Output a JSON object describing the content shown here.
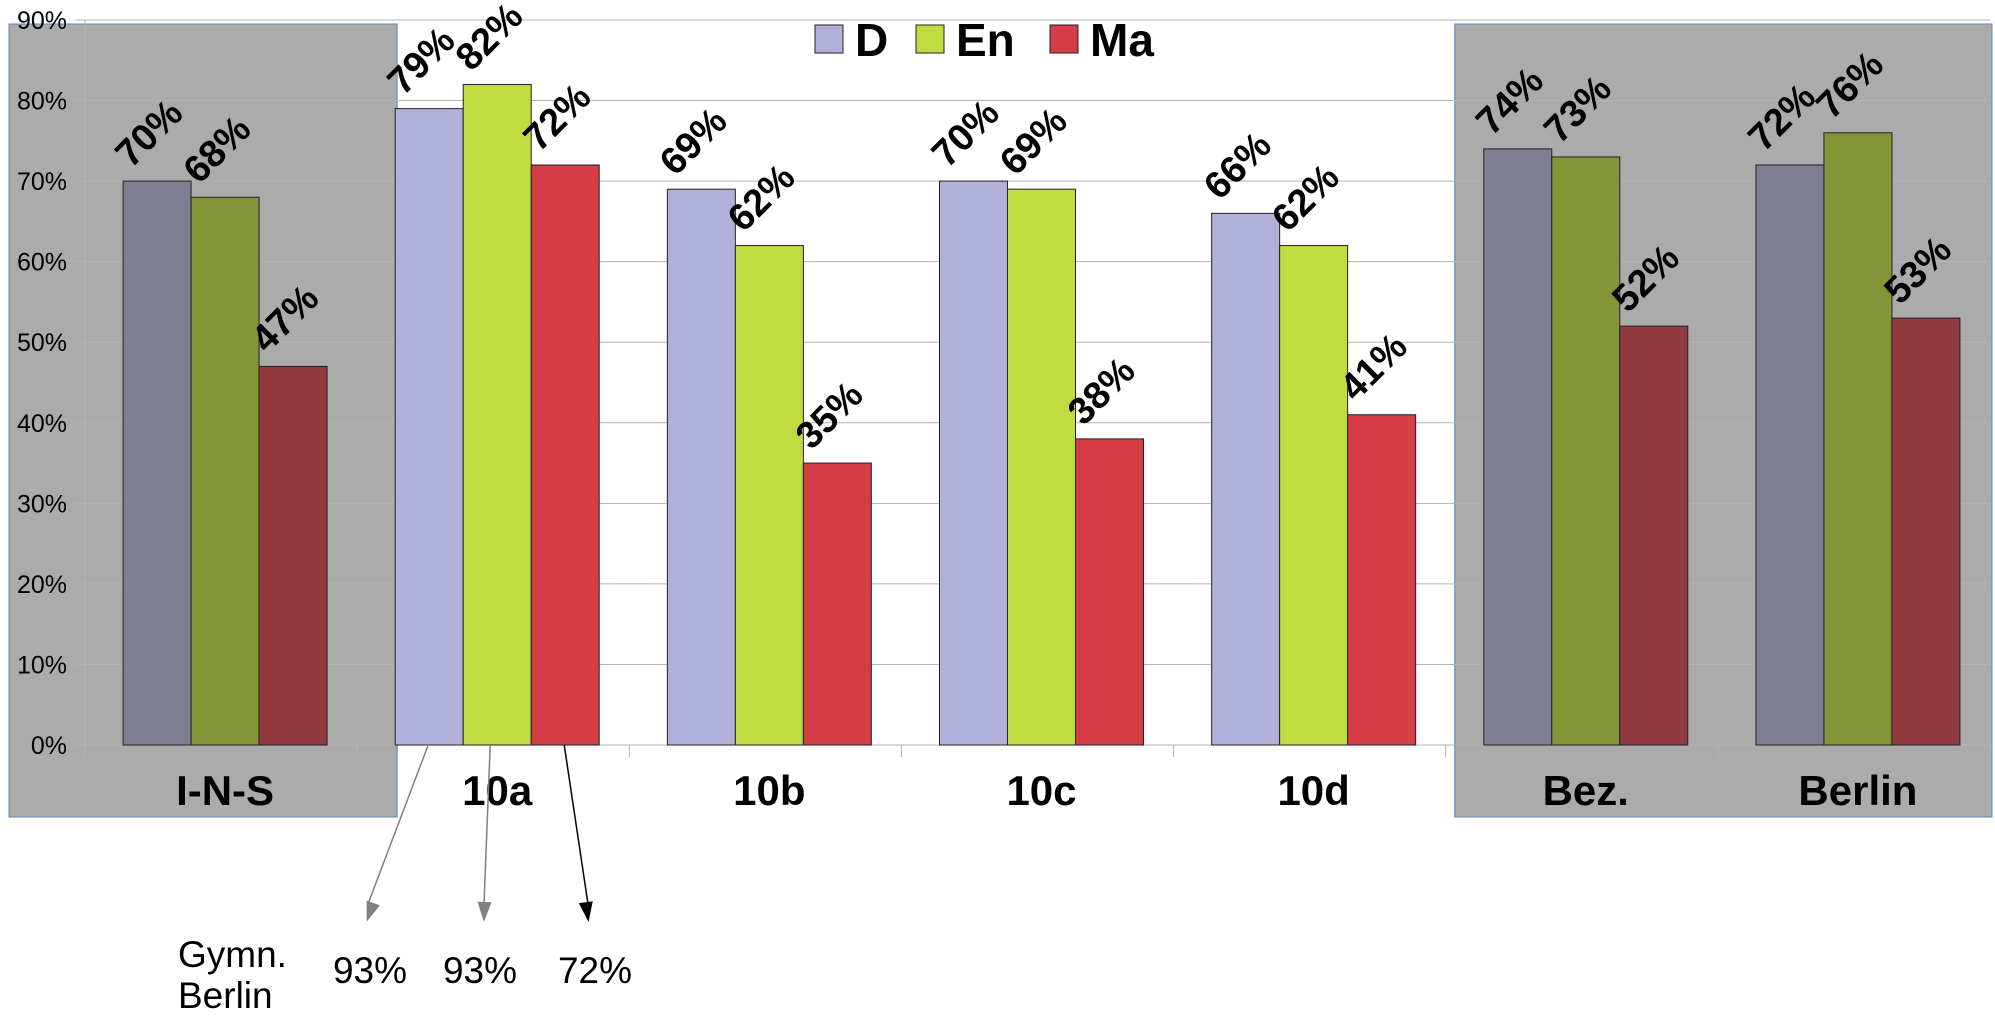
{
  "chart_data": {
    "type": "bar",
    "categories": [
      "I-N-S",
      "10a",
      "10b",
      "10c",
      "10d",
      "Bez.",
      "Berlin"
    ],
    "series": [
      {
        "name": "D",
        "values": [
          70,
          79,
          69,
          70,
          66,
          74,
          72
        ],
        "color": "#b0b0d8",
        "shaded_color": "#7f7f94"
      },
      {
        "name": "En",
        "values": [
          68,
          82,
          62,
          69,
          62,
          73,
          76
        ],
        "color": "#c0dc40",
        "shaded_color": "#839536"
      },
      {
        "name": "Ma",
        "values": [
          47,
          72,
          35,
          38,
          41,
          52,
          53
        ],
        "color": "#d43c46",
        "shaded_color": "#923a40"
      }
    ],
    "data_labels": [
      [
        "70%",
        "79%",
        "69%",
        "70%",
        "66%",
        "74%",
        "72%"
      ],
      [
        "68%",
        "82%",
        "62%",
        "69%",
        "62%",
        "73%",
        "76%"
      ],
      [
        "47%",
        "72%",
        "35%",
        "38%",
        "41%",
        "52%",
        "53%"
      ]
    ],
    "y_ticks": [
      0,
      10,
      20,
      30,
      40,
      50,
      60,
      70,
      80,
      90
    ],
    "y_tick_labels": [
      "0%",
      "10%",
      "20%",
      "30%",
      "40%",
      "50%",
      "60%",
      "70%",
      "80%",
      "90%"
    ],
    "ylim": [
      0,
      90
    ],
    "grid": true,
    "legend_position": "top",
    "highlighted_categories": [
      "I-N-S",
      "Bez.",
      "Berlin"
    ],
    "highlight_color": "#ababab",
    "title": "",
    "xlabel": "",
    "ylabel": ""
  },
  "annotation": {
    "label_line1": "Gymn.",
    "label_line2": "Berlin",
    "values": [
      "93%",
      "93%",
      "72%"
    ],
    "arrow_colors": [
      "#808080",
      "#808080",
      "#000000"
    ]
  }
}
